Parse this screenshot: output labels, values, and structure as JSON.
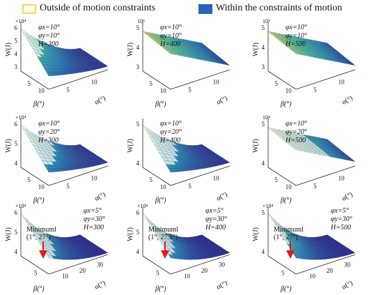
{
  "legend": {
    "outside": {
      "label": "Outside of motion constraints",
      "color": "#f5e46a"
    },
    "within": {
      "label": "Within the constraints of motion",
      "color": "#2a62b7"
    }
  },
  "colors": {
    "low": "#2b1f8c",
    "mid": "#2a86b8",
    "midhigh": "#4ec3a0",
    "high": "#f3d95a"
  },
  "chart_data": [
    {
      "type": "surface",
      "row": 0,
      "col": 0,
      "phi_x": "φx=10°",
      "phi_y": "φy=10°",
      "H": "H=300",
      "exponent": "×10⁴",
      "zlabel": "W(J)",
      "xlabel": "β(°)",
      "ylabel": "α(°)",
      "z_ticks": [
        "6",
        "5",
        "4",
        "3"
      ],
      "beta_ticks": [
        "5",
        "10"
      ],
      "alpha_ticks": [
        "5",
        "10"
      ],
      "zlim": [
        3,
        6.5
      ],
      "feasible_fraction": 0.7,
      "shape": "peak"
    },
    {
      "type": "surface",
      "row": 0,
      "col": 1,
      "phi_x": "φx=10°",
      "phi_y": "φy=10°",
      "H": "H=400",
      "exponent": "10⁴",
      "zlabel": "W(J)",
      "xlabel": "β(°)",
      "ylabel": "α(°)",
      "z_ticks": [
        "5",
        "4",
        "3"
      ],
      "beta_ticks": [
        "5",
        "10"
      ],
      "alpha_ticks": [
        "5",
        "10"
      ],
      "zlim": [
        3,
        6
      ],
      "feasible_fraction": 0.0,
      "shape": "ramp"
    },
    {
      "type": "surface",
      "row": 0,
      "col": 2,
      "phi_x": "φx=10°",
      "phi_y": "φy=10°",
      "H": "H=500",
      "exponent": "10⁴",
      "zlabel": "W(J)",
      "xlabel": "β(°)",
      "ylabel": "α(°)",
      "z_ticks": [
        "5",
        "4",
        "3"
      ],
      "beta_ticks": [
        "5",
        "10"
      ],
      "alpha_ticks": [
        "5",
        "10"
      ],
      "zlim": [
        3,
        6
      ],
      "feasible_fraction": 0.0,
      "shape": "ramp"
    },
    {
      "type": "surface",
      "row": 1,
      "col": 0,
      "phi_x": "φx=10°",
      "phi_y": "φy=20°",
      "H": "H=300",
      "exponent": "×10⁴",
      "zlabel": "W(J)",
      "xlabel": "β(°)",
      "ylabel": "α(°)",
      "z_ticks": [
        "6",
        "5",
        "4"
      ],
      "beta_ticks": [
        "5",
        "10"
      ],
      "alpha_ticks": [
        "5",
        "10"
      ],
      "zlim": [
        3.5,
        6.5
      ],
      "feasible_fraction": 0.3,
      "shape": "peak"
    },
    {
      "type": "surface",
      "row": 1,
      "col": 1,
      "phi_x": "φx=10°",
      "phi_y": "φy=20°",
      "H": "H=400",
      "exponent": "",
      "zlabel": "W(J)",
      "xlabel": "β(°)",
      "ylabel": "α(°)",
      "z_ticks": [
        "5",
        "4"
      ],
      "beta_ticks": [
        "5",
        "10"
      ],
      "alpha_ticks": [
        "5",
        "10"
      ],
      "zlim": [
        3.5,
        6
      ],
      "feasible_fraction": 0.3,
      "shape": "peak"
    },
    {
      "type": "surface",
      "row": 1,
      "col": 2,
      "phi_x": "φx=10°",
      "phi_y": "φy=20°",
      "H": "H=500",
      "exponent": "10⁴",
      "zlabel": "W(J)",
      "xlabel": "β(°)",
      "ylabel": "α(°)",
      "z_ticks": [
        "5",
        "4"
      ],
      "beta_ticks": [
        "5",
        "10"
      ],
      "alpha_ticks": [
        "5",
        "10"
      ],
      "zlim": [
        3.5,
        6
      ],
      "feasible_fraction": 0.4,
      "shape": "ramp"
    },
    {
      "type": "surface",
      "row": 2,
      "col": 0,
      "phi_x": "φx=5°",
      "phi_y": "φy=30°",
      "H": "H=300",
      "exponent": "×10⁴",
      "zlabel": "W(J)",
      "xlabel": "β(°)",
      "ylabel": "α(°)",
      "z_ticks": [
        "6",
        "5",
        "4"
      ],
      "beta_ticks": [
        "5"
      ],
      "alpha_ticks": [
        "10",
        "20",
        "30"
      ],
      "zlim": [
        4,
        6.5
      ],
      "feasible_fraction": 0.25,
      "shape": "valley",
      "annotation": {
        "title": "Minimuml",
        "coords": "(1°, 27°)"
      }
    },
    {
      "type": "surface",
      "row": 2,
      "col": 1,
      "phi_x": "φx=5°",
      "phi_y": "φy=30°",
      "H": "H=400",
      "exponent": "×10⁴",
      "zlabel": "W(J)",
      "xlabel": "β(°)",
      "ylabel": "α(°)",
      "z_ticks": [
        "6",
        "5",
        "4"
      ],
      "beta_ticks": [
        "5"
      ],
      "alpha_ticks": [
        "10",
        "20",
        "30"
      ],
      "zlim": [
        4,
        6.5
      ],
      "feasible_fraction": 0.3,
      "shape": "valley",
      "annotation": {
        "title": "Minimuml",
        "coords": "(1°, 27.5°)"
      }
    },
    {
      "type": "surface",
      "row": 2,
      "col": 2,
      "phi_x": "φx=5°",
      "phi_y": "φy=30°",
      "H": "H=500",
      "exponent": "×10⁴",
      "zlabel": "W(J)",
      "xlabel": "β(°)",
      "ylabel": "α(°)",
      "z_ticks": [
        "5",
        "4"
      ],
      "beta_ticks": [
        "5"
      ],
      "alpha_ticks": [
        "10",
        "20",
        "30"
      ],
      "zlim": [
        4,
        6
      ],
      "feasible_fraction": 0.75,
      "shape": "valley",
      "annotation": {
        "title": "Minimuml",
        "coords": "(1°, 27°)"
      }
    }
  ]
}
